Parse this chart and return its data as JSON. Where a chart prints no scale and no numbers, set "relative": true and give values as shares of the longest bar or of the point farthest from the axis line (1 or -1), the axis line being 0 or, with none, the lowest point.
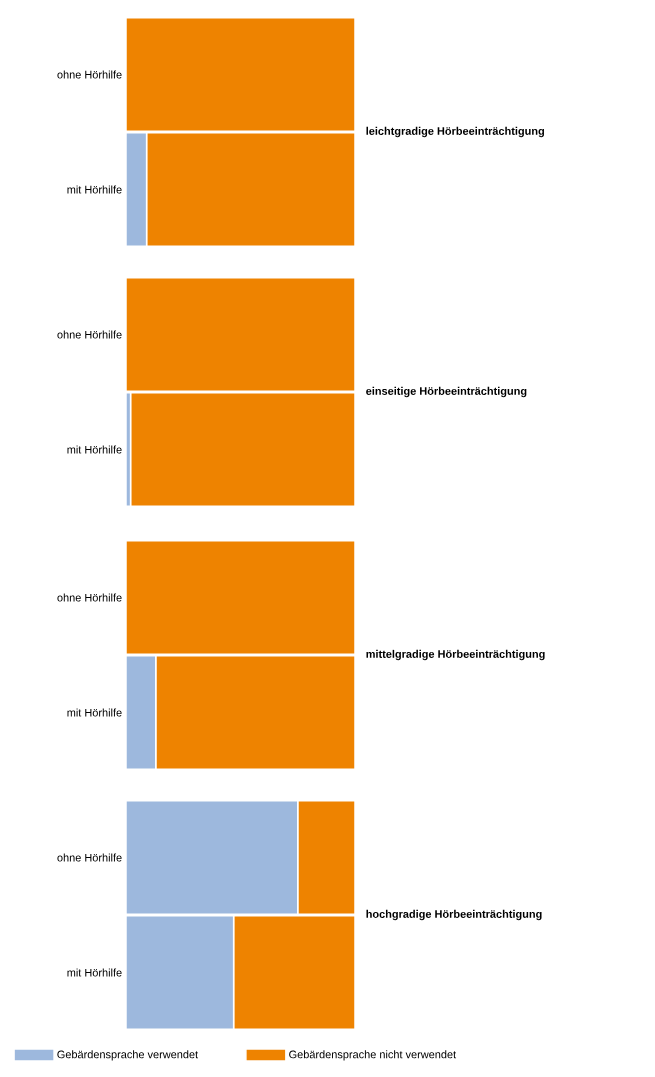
{
  "chart_data": [
    {
      "type": "bar",
      "orientation": "horizontal",
      "stacked": true,
      "relative": true,
      "y2label": "leichtgradige Hörbeeinträchtigung",
      "categories": [
        "ohne Hörhilfe",
        "mit Hörhilfe"
      ],
      "series": [
        {
          "color": "#9db8dd",
          "values": [
            0,
            0.09
          ]
        },
        {
          "color": "#ee8300",
          "values": [
            1,
            0.91
          ]
        }
      ]
    },
    {
      "type": "bar",
      "orientation": "horizontal",
      "stacked": true,
      "relative": true,
      "y2label": "einseitige Hörbeeinträchtigung",
      "categories": [
        "ohne Hörhilfe",
        "mit Hörhilfe"
      ],
      "series": [
        {
          "color": "#9db8dd",
          "values": [
            0,
            0.02
          ]
        },
        {
          "color": "#ee8300",
          "values": [
            1,
            0.98
          ]
        }
      ]
    },
    {
      "type": "bar",
      "orientation": "horizontal",
      "stacked": true,
      "relative": true,
      "y2label": "mittelgradige Hörbeeinträchtigung",
      "categories": [
        "ohne Hörhilfe",
        "mit Hörhilfe"
      ],
      "series": [
        {
          "color": "#9db8dd",
          "values": [
            0,
            0.13
          ]
        },
        {
          "color": "#ee8300",
          "values": [
            1,
            0.87
          ]
        }
      ]
    },
    {
      "type": "bar",
      "orientation": "horizontal",
      "stacked": true,
      "relative": true,
      "y2label": "hochgradige Hörbeeinträchtigung",
      "categories": [
        "ohne Hörhilfe",
        "mit Hörhilfe"
      ],
      "legend": "bottom",
      "series": [
        {
          "name": "Gebärdensprache verwendet",
          "color": "#9db8dd",
          "values": [
            0.75,
            0.47
          ]
        },
        {
          "name": "Gebärdensprache nicht verwendet",
          "color": "#ee8300",
          "values": [
            0.25,
            0.53
          ]
        }
      ]
    }
  ]
}
